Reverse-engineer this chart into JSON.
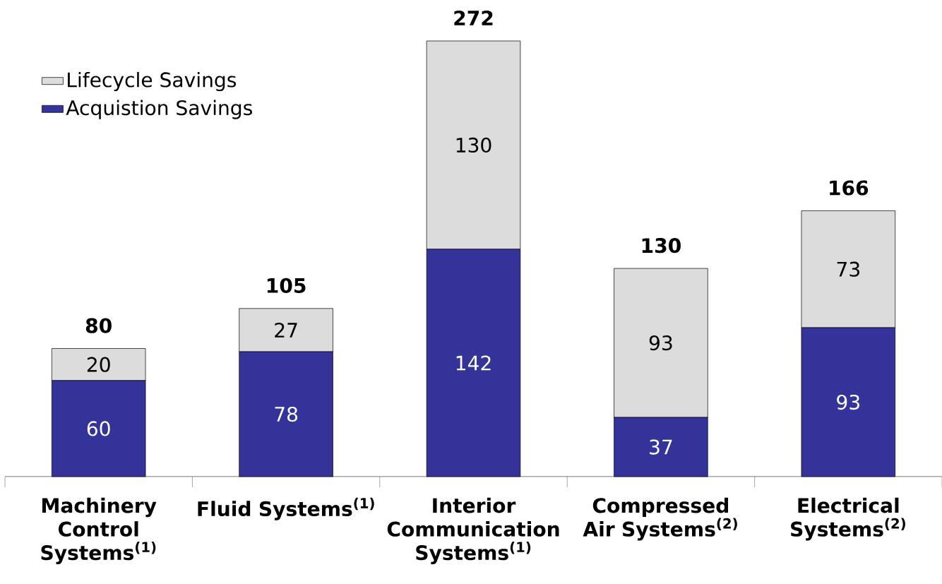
{
  "chart_data": {
    "type": "bar",
    "stacked": true,
    "categories": [
      "Machinery Control Systems$^{(1)}$",
      "Fluid Systems$^{(1)}$",
      "Interior Communication Systems$^{(1)}$",
      "Compressed Air Systems$^{(2)}$",
      "Electrical Systems$^{(2)}$"
    ],
    "series": [
      {
        "name": "Acquistion Savings",
        "color": "#333399",
        "values": [
          60,
          78,
          142,
          37,
          93
        ]
      },
      {
        "name": "Lifecycle Savings",
        "color": "#dcdcdc",
        "values": [
          20,
          27,
          130,
          93,
          73
        ]
      }
    ],
    "data_labels": true,
    "totals": [
      "80",
      "105",
      "272",
      "130",
      "166"
    ],
    "legend": "top left"
  }
}
